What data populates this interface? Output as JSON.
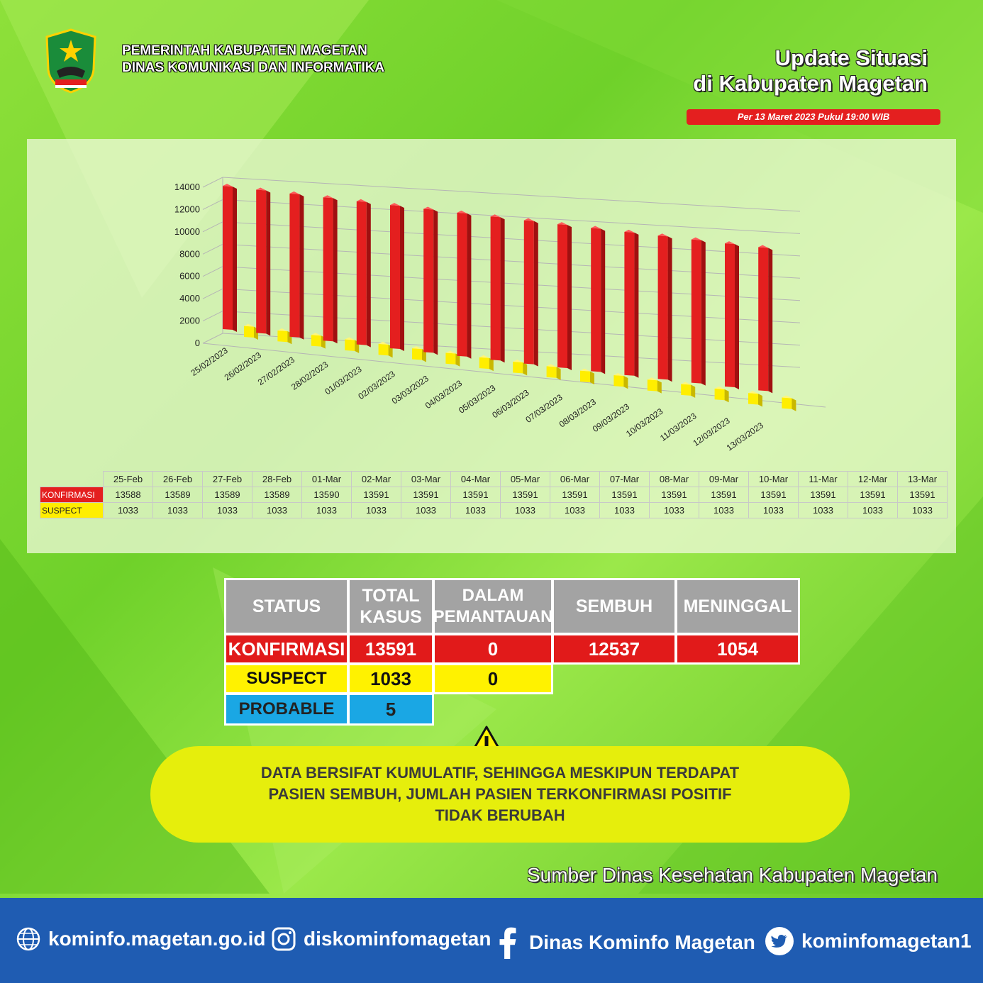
{
  "header": {
    "org_line1": "PEMERINTAH KABUPATEN MAGETAN",
    "org_line2": "DINAS KOMUNIKASI DAN INFORMATIKA",
    "title_line1": "Update Situasi",
    "title_line2": "di Kabupaten Magetan",
    "date": "Per 13 Maret 2023 Pukul 19:00 WIB",
    "logo_icon": "magetan-crest-icon"
  },
  "chart_data": {
    "type": "bar",
    "categories": [
      "25/02/2023",
      "26/02/2023",
      "27/02/2023",
      "28/02/2023",
      "01/03/2023",
      "02/03/2023",
      "03/03/2023",
      "04/03/2023",
      "05/03/2023",
      "06/03/2023",
      "07/03/2023",
      "08/03/2023",
      "09/03/2023",
      "10/03/2023",
      "11/03/2023",
      "12/03/2023",
      "13/03/2023"
    ],
    "y_ticks": [
      "14000",
      "12000",
      "10000",
      "8000",
      "6000",
      "4000",
      "2000",
      "0"
    ],
    "ylim": [
      0,
      14000
    ],
    "grid": true,
    "series": [
      {
        "name": "KONFIRMASI",
        "color": "#e41f1f",
        "values": [
          13588,
          13589,
          13589,
          13589,
          13590,
          13591,
          13591,
          13591,
          13591,
          13591,
          13591,
          13591,
          13591,
          13591,
          13591,
          13591,
          13591
        ]
      },
      {
        "name": "SUSPECT",
        "color": "#ffee00",
        "values": [
          1033,
          1033,
          1033,
          1033,
          1033,
          1033,
          1033,
          1033,
          1033,
          1033,
          1033,
          1033,
          1033,
          1033,
          1033,
          1033,
          1033
        ]
      }
    ]
  },
  "table": {
    "columns": [
      "25-Feb",
      "26-Feb",
      "27-Feb",
      "28-Feb",
      "01-Mar",
      "02-Mar",
      "03-Mar",
      "04-Mar",
      "05-Mar",
      "06-Mar",
      "07-Mar",
      "08-Mar",
      "09-Mar",
      "10-Mar",
      "11-Mar",
      "12-Mar",
      "13-Mar"
    ],
    "rows": [
      {
        "label": "KONFIRMASI",
        "values": [
          "13588",
          "13589",
          "13589",
          "13589",
          "13590",
          "13591",
          "13591",
          "13591",
          "13591",
          "13591",
          "13591",
          "13591",
          "13591",
          "13591",
          "13591",
          "13591",
          "13591"
        ]
      },
      {
        "label": "SUSPECT",
        "values": [
          "1033",
          "1033",
          "1033",
          "1033",
          "1033",
          "1033",
          "1033",
          "1033",
          "1033",
          "1033",
          "1033",
          "1033",
          "1033",
          "1033",
          "1033",
          "1033",
          "1033"
        ]
      }
    ]
  },
  "status": {
    "headers": [
      "STATUS",
      "TOTAL KASUS",
      "DALAM PEMANTAUAN",
      "SEMBUH",
      "MENINGGAL"
    ],
    "konfirmasi": {
      "label": "KONFIRMASI",
      "total": "13591",
      "pemantauan": "0",
      "sembuh": "12537",
      "meninggal": "1054"
    },
    "suspect": {
      "label": "SUSPECT",
      "total": "1033",
      "pemantauan": "0"
    },
    "probable": {
      "label": "PROBABLE",
      "total": "5"
    }
  },
  "notice": {
    "line1": "DATA BERSIFAT KUMULATIF, SEHINGGA MESKIPUN TERDAPAT",
    "line2": "PASIEN SEMBUH, JUMLAH PASIEN TERKONFIRMASI POSITIF",
    "line3": "TIDAK BERUBAH",
    "icon": "warning-icon"
  },
  "source": "Sumber Dinas Kesehatan Kabupaten Magetan",
  "footer": {
    "website": "kominfo.magetan.go.id",
    "instagram": "diskominfomagetan",
    "facebook": "Dinas Kominfo Magetan",
    "twitter": "kominfomagetan1"
  }
}
